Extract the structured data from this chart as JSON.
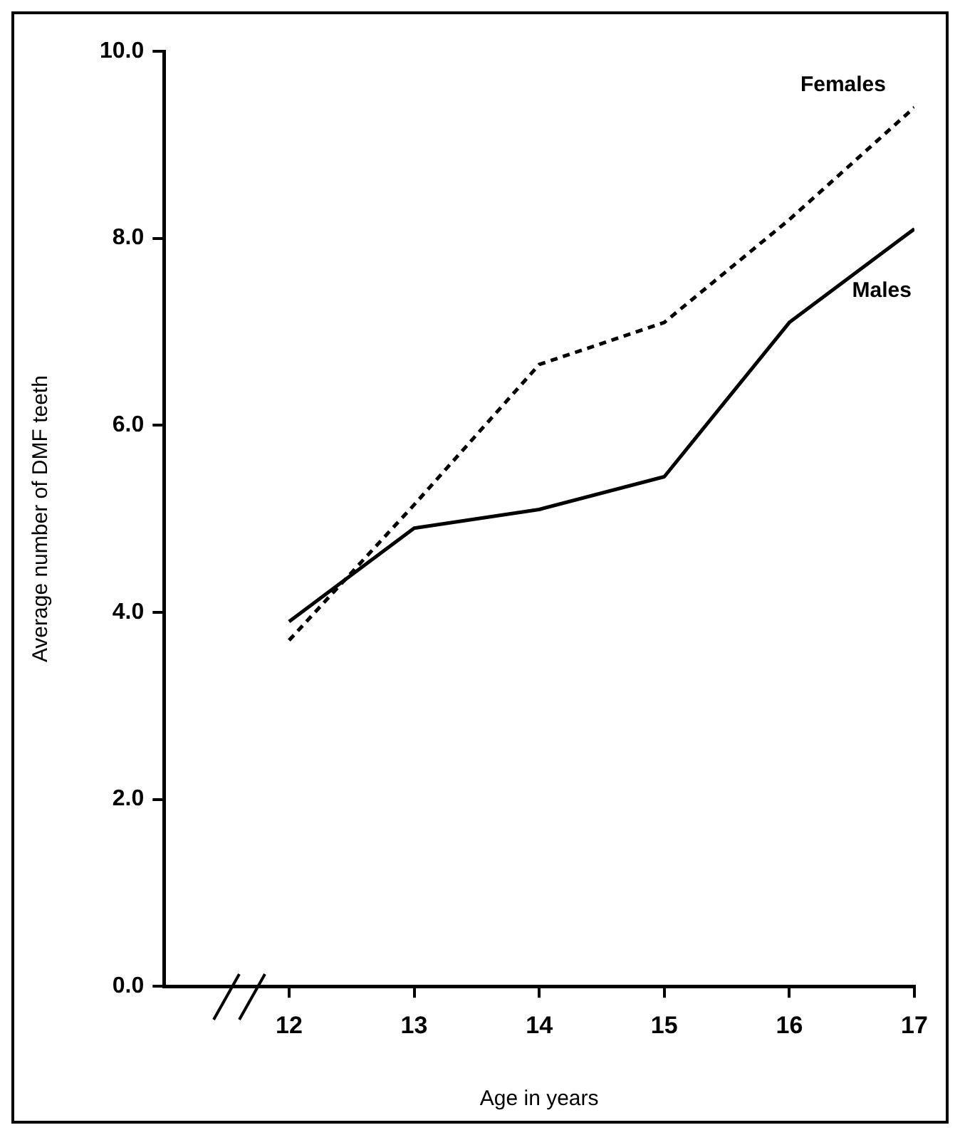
{
  "chart_data": {
    "type": "line",
    "xlabel": "Age in years",
    "ylabel": "Average number of DMF teeth",
    "x": [
      12,
      13,
      14,
      15,
      16,
      17
    ],
    "series": [
      {
        "name": "Females",
        "color": "#000000",
        "line_style": "dashed",
        "values": [
          3.7,
          5.15,
          6.65,
          7.1,
          8.2,
          9.4
        ]
      },
      {
        "name": "Males",
        "color": "#000000",
        "line_style": "solid",
        "values": [
          3.9,
          4.9,
          5.1,
          5.45,
          7.1,
          8.1
        ]
      }
    ],
    "xlim": [
      11,
      17
    ],
    "xticks": [
      12,
      13,
      14,
      15,
      16,
      17
    ],
    "ylim": [
      0,
      10
    ],
    "yticks": [
      {
        "value": 0,
        "label": "0.0"
      },
      {
        "value": 2,
        "label": "2.0"
      },
      {
        "value": 4,
        "label": "4.0"
      },
      {
        "value": 6,
        "label": "6.0"
      },
      {
        "value": 8,
        "label": "8.0"
      },
      {
        "value": 10,
        "label": "10.0"
      }
    ],
    "grid": false,
    "legend": false,
    "marker": "none"
  }
}
